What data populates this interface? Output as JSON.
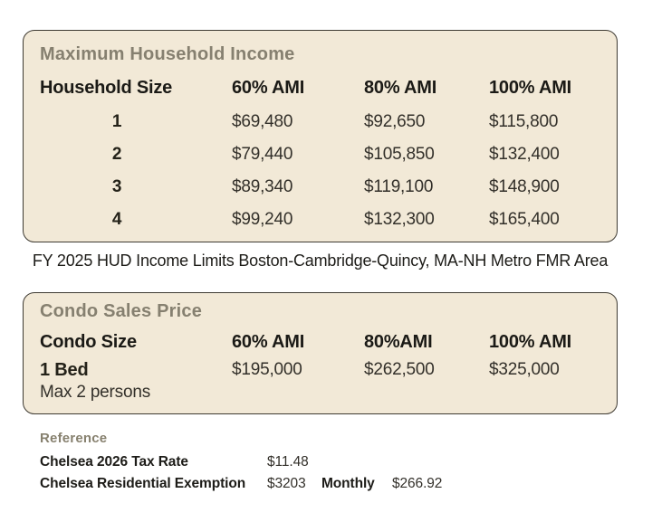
{
  "colors": {
    "card_background": "#f2e9d7",
    "card_border": "#3e3a32",
    "title_olive": "#868070",
    "heading_text": "#1b1a16",
    "body_text": "#33302a"
  },
  "income_table": {
    "title": "Maximum Household Income",
    "columns": [
      "Household Size",
      "60% AMI",
      "80% AMI",
      "100% AMI"
    ],
    "rows": [
      [
        "1",
        "$69,480",
        "$92,650",
        "$115,800"
      ],
      [
        "2",
        "$79,440",
        "$105,850",
        "$132,400"
      ],
      [
        "3",
        "$89,340",
        "$119,100",
        "$148,900"
      ],
      [
        "4",
        "$99,240",
        "$132,300",
        "$165,400"
      ]
    ]
  },
  "caption": "FY 2025 HUD Income Limits Boston-Cambridge-Quincy, MA-NH Metro FMR Area",
  "condo_table": {
    "title": "Condo Sales Price",
    "columns": [
      "Condo Size",
      "60% AMI",
      "80%AMI",
      "100% AMI"
    ],
    "row": {
      "size": "1 Bed",
      "note": "Max 2 persons",
      "values": [
        "$195,000",
        "$262,500",
        "$325,000"
      ]
    }
  },
  "reference": {
    "label": "Reference",
    "rows": [
      {
        "label": "Chelsea 2026 Tax Rate",
        "value": "$11.48"
      },
      {
        "label": "Chelsea Residential Exemption",
        "value": "$3203",
        "extra_label": "Monthly",
        "extra_value": "$266.92"
      }
    ]
  }
}
